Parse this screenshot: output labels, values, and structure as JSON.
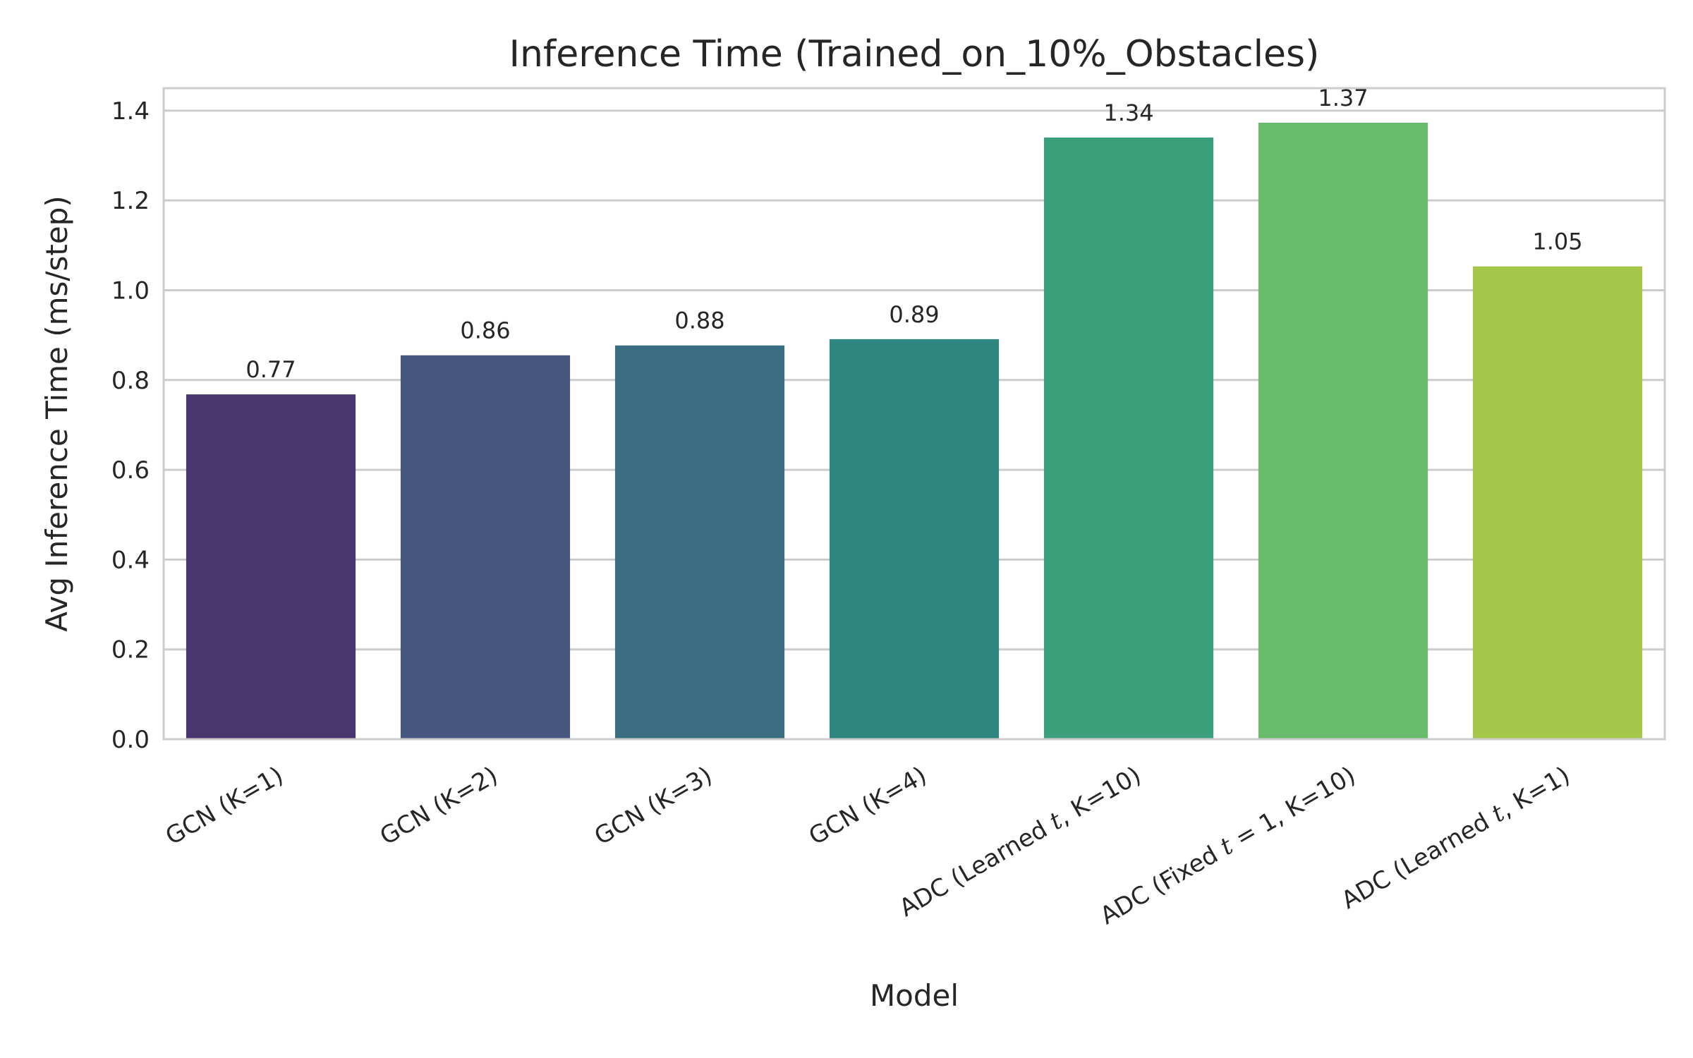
{
  "chart_data": {
    "type": "bar",
    "title": "Inference Time (Trained_on_10%_Obstacles)",
    "xlabel": "Model",
    "ylabel": "Avg Inference Time (ms/step)",
    "categories": [
      "GCN (K=1)",
      "GCN (K=2)",
      "GCN (K=3)",
      "GCN (K=4)",
      "ADC (Learned t, K=10)",
      "ADC (Fixed t = 1, K=10)",
      "ADC (Learned t, K=1)"
    ],
    "category_parts": [
      [
        {
          "t": "GCN (K=1)",
          "i": false
        }
      ],
      [
        {
          "t": "GCN (K=2)",
          "i": false
        }
      ],
      [
        {
          "t": "GCN (K=3)",
          "i": false
        }
      ],
      [
        {
          "t": "GCN (K=4)",
          "i": false
        }
      ],
      [
        {
          "t": "ADC (Learned ",
          "i": false
        },
        {
          "t": "t",
          "i": true
        },
        {
          "t": ", K=10)",
          "i": false
        }
      ],
      [
        {
          "t": "ADC (Fixed ",
          "i": false
        },
        {
          "t": "t",
          "i": true
        },
        {
          "t": " = 1, K=10)",
          "i": false
        }
      ],
      [
        {
          "t": "ADC (Learned ",
          "i": false
        },
        {
          "t": "t",
          "i": true
        },
        {
          "t": ", K=1)",
          "i": false
        }
      ]
    ],
    "values": [
      0.768,
      0.855,
      0.877,
      0.891,
      1.34,
      1.373,
      1.053
    ],
    "value_labels": [
      "0.77",
      "0.86",
      "0.88",
      "0.89",
      "1.34",
      "1.37",
      "1.05"
    ],
    "colors": [
      "#48366f",
      "#46577e",
      "#3a6d81",
      "#2f857f",
      "#3c9f7c",
      "#6abc6d",
      "#a4c74a"
    ],
    "ylim": [
      0,
      1.45
    ],
    "yticks": [
      0.0,
      0.2,
      0.4,
      0.6,
      0.8,
      1.0,
      1.2,
      1.4
    ],
    "ytick_labels": [
      "0.0",
      "0.2",
      "0.4",
      "0.6",
      "0.8",
      "1.0",
      "1.2",
      "1.4"
    ],
    "grid": true,
    "grid_color": "#cccccc",
    "axis_color": "#cccccc",
    "background": "#ffffff"
  }
}
